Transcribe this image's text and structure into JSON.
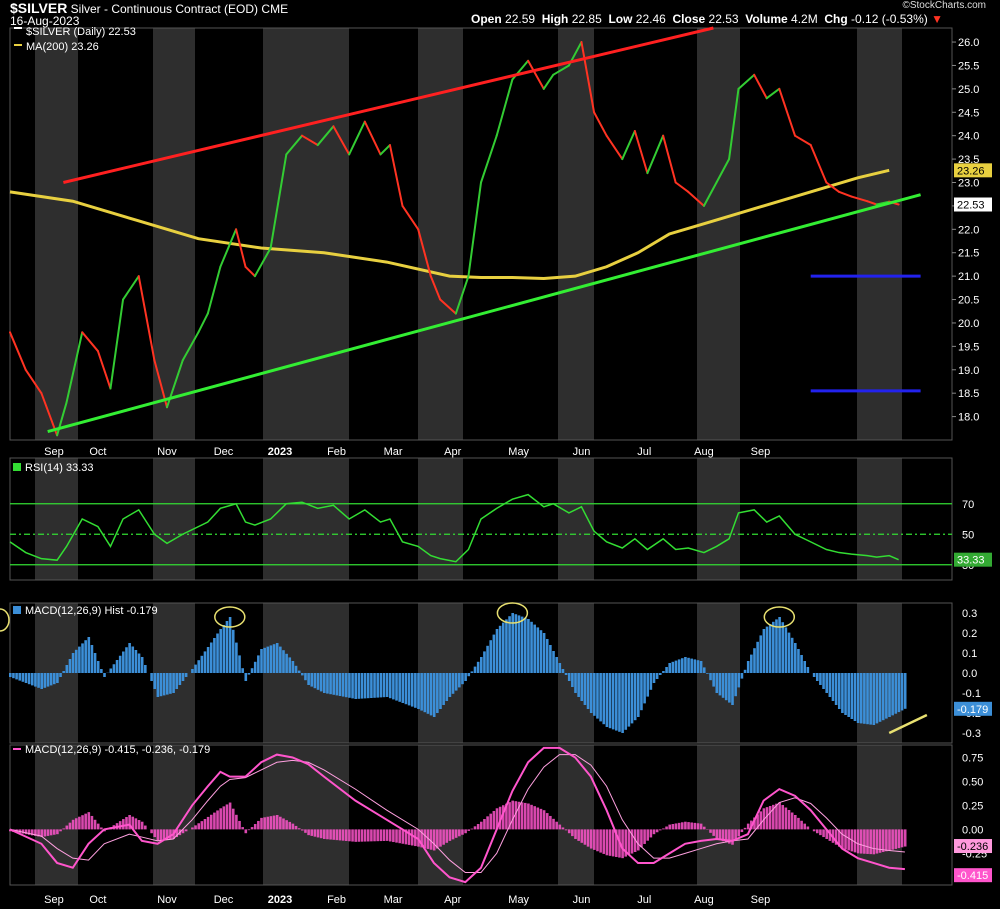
{
  "header": {
    "symbol": "$SILVER",
    "description": "Silver - Continuous Contract (EOD)",
    "exchange": "CME",
    "date": "16-Aug-2023",
    "ohlc_labels": [
      "Open",
      "High",
      "Low",
      "Close",
      "Volume",
      "Chg"
    ],
    "ohlc_values": [
      "22.59",
      "22.85",
      "22.46",
      "22.53",
      "4.2M",
      "-0.12 (-0.53%)"
    ],
    "watermark": "©StockCharts.com"
  },
  "colors": {
    "background": "#000000",
    "band": "#2e2e2e",
    "up": "#33cc33",
    "down": "#ff3322",
    "ma": "#e8d040",
    "rsi": "#33dd33",
    "hist": "#3c8fd8",
    "macd": "#ff55cc",
    "resistance": "#ff2020",
    "support": "#33ee33",
    "level": "#2222ee",
    "annotation": "#e8e070"
  },
  "chart_data": [
    {
      "type": "line",
      "panel": "price",
      "legend": [
        "$SILVER (Daily) 22.53",
        "MA(200) 23.26"
      ],
      "x_labels": [
        "Sep",
        "Oct",
        "Nov",
        "Dec",
        "2023",
        "Feb",
        "Mar",
        "Apr",
        "May",
        "Jun",
        "Jul",
        "Aug",
        "Sep"
      ],
      "ylim": [
        17.5,
        26.3
      ],
      "y_ticks": [
        "18.0",
        "18.5",
        "19.0",
        "19.5",
        "20.0",
        "20.5",
        "21.0",
        "21.5",
        "22.0",
        "22.5",
        "23.0",
        "23.5",
        "24.0",
        "24.5",
        "25.0",
        "25.5",
        "26.0"
      ],
      "last_labels": {
        "ma": "23.26",
        "price": "22.53"
      },
      "series": [
        {
          "name": "$SILVER (Daily)",
          "x": [
            0,
            5,
            10,
            15,
            18,
            23,
            28,
            32,
            36,
            41,
            46,
            50,
            55,
            60,
            63,
            67,
            72,
            75,
            78,
            83,
            88,
            93,
            98,
            103,
            108,
            113,
            118,
            121,
            125,
            130,
            134,
            137,
            142,
            146,
            150,
            155,
            160,
            165,
            170,
            173,
            178,
            182,
            186,
            190,
            195,
            199,
            203,
            208,
            212,
            216,
            221,
            225,
            229,
            232,
            237,
            241,
            245,
            250,
            255,
            260,
            264,
            268,
            273,
            276,
            280,
            283
          ],
          "y": [
            19.8,
            19.0,
            18.5,
            17.6,
            18.3,
            19.8,
            19.4,
            18.6,
            20.5,
            21.0,
            19.2,
            18.2,
            19.2,
            19.8,
            20.2,
            21.2,
            22.0,
            21.2,
            21.0,
            21.6,
            23.6,
            24.0,
            23.8,
            24.2,
            23.6,
            24.3,
            23.6,
            23.8,
            22.5,
            22.0,
            21.0,
            20.5,
            20.2,
            21.0,
            23.0,
            24.0,
            25.2,
            25.6,
            25.0,
            25.3,
            25.5,
            26.0,
            24.5,
            24.0,
            23.5,
            24.1,
            23.2,
            24.0,
            23.0,
            22.8,
            22.5,
            23.0,
            23.5,
            25.0,
            25.3,
            24.8,
            25.0,
            24.0,
            23.8,
            23.0,
            22.8,
            22.7,
            22.6,
            22.53,
            22.59,
            22.53
          ]
        },
        {
          "name": "MA(200)",
          "x": [
            0,
            20,
            40,
            60,
            80,
            100,
            120,
            140,
            150,
            160,
            170,
            180,
            190,
            200,
            210,
            220,
            230,
            240,
            250,
            260,
            270,
            280
          ],
          "y": [
            22.8,
            22.6,
            22.2,
            21.8,
            21.6,
            21.5,
            21.3,
            21.0,
            20.97,
            20.97,
            20.95,
            21.0,
            21.2,
            21.5,
            21.9,
            22.1,
            22.3,
            22.5,
            22.7,
            22.9,
            23.1,
            23.26
          ]
        }
      ],
      "trendlines": [
        {
          "name": "resistance",
          "from": [
            17,
            23.0
          ],
          "to": [
            224,
            26.3
          ]
        },
        {
          "name": "support",
          "from": [
            12,
            17.68
          ],
          "to": [
            290,
            22.74
          ]
        }
      ],
      "levels": [
        {
          "value": 21.0,
          "from_x": 255,
          "to_x": 290
        },
        {
          "value": 18.55,
          "from_x": 255,
          "to_x": 290
        }
      ]
    },
    {
      "type": "line",
      "panel": "rsi",
      "legend": "RSI(14) 33.33",
      "ylim": [
        20,
        100
      ],
      "y_ticks": [
        "70",
        "50",
        "30"
      ],
      "reference_lines": [
        70,
        50,
        30
      ],
      "last_label": "33.33",
      "series": [
        {
          "name": "RSI(14)",
          "x": [
            0,
            5,
            10,
            15,
            18,
            23,
            28,
            32,
            36,
            41,
            46,
            50,
            55,
            60,
            63,
            67,
            72,
            75,
            78,
            83,
            88,
            93,
            98,
            103,
            108,
            113,
            118,
            121,
            125,
            130,
            134,
            137,
            142,
            146,
            150,
            155,
            160,
            165,
            170,
            173,
            178,
            182,
            186,
            190,
            195,
            199,
            203,
            208,
            212,
            216,
            221,
            225,
            229,
            232,
            237,
            241,
            245,
            250,
            255,
            260,
            264,
            268,
            273,
            276,
            280,
            283
          ],
          "y": [
            45,
            38,
            34,
            33,
            42,
            60,
            55,
            42,
            60,
            66,
            50,
            44,
            50,
            55,
            58,
            67,
            70,
            58,
            56,
            60,
            70,
            71,
            67,
            69,
            60,
            66,
            58,
            60,
            45,
            42,
            36,
            34,
            32,
            40,
            60,
            67,
            73,
            76,
            68,
            70,
            64,
            68,
            52,
            45,
            41,
            47,
            40,
            47,
            40,
            41,
            38,
            42,
            47,
            64,
            66,
            58,
            62,
            50,
            45,
            40,
            38,
            37,
            36,
            35,
            36,
            33.33
          ]
        }
      ]
    },
    {
      "type": "bar",
      "panel": "macd_hist",
      "legend": "MACD(12,26,9) Hist -0.179",
      "ylim": [
        -0.35,
        0.35
      ],
      "y_ticks": [
        "0.3",
        "0.2",
        "0.1",
        "0.0",
        "-0.1",
        "-0.2",
        "-0.3"
      ],
      "last_label": "-0.179",
      "x": [
        0,
        10,
        15,
        20,
        25,
        30,
        38,
        42,
        47,
        52,
        58,
        63,
        67,
        70,
        75,
        80,
        85,
        90,
        95,
        100,
        110,
        120,
        130,
        135,
        140,
        145,
        150,
        155,
        160,
        165,
        170,
        175,
        180,
        185,
        190,
        195,
        200,
        205,
        210,
        215,
        220,
        225,
        230,
        235,
        240,
        245,
        250,
        255,
        260,
        265,
        270,
        275,
        280,
        285
      ],
      "values": [
        -0.02,
        -0.08,
        -0.05,
        0.1,
        0.18,
        -0.02,
        0.15,
        0.08,
        -0.12,
        -0.1,
        0.02,
        0.13,
        0.22,
        0.28,
        -0.04,
        0.12,
        0.15,
        0.06,
        -0.06,
        -0.1,
        -0.13,
        -0.12,
        -0.18,
        -0.22,
        -0.12,
        -0.04,
        0.08,
        0.22,
        0.3,
        0.27,
        0.2,
        0.05,
        -0.1,
        -0.2,
        -0.27,
        -0.3,
        -0.22,
        -0.05,
        0.05,
        0.08,
        0.06,
        -0.1,
        -0.16,
        0.06,
        0.22,
        0.28,
        0.15,
        0.0,
        -0.1,
        -0.2,
        -0.25,
        -0.26,
        -0.22,
        -0.179
      ]
    },
    {
      "type": "line",
      "panel": "macd",
      "legend": "MACD(12,26,9) -0.415, -0.236, -0.179",
      "ylim": [
        -0.58,
        0.88
      ],
      "y_ticks": [
        "0.75",
        "0.50",
        "0.25",
        "0.00",
        "-0.25",
        "-0.50"
      ],
      "last_labels": [
        "-0.236",
        "-0.415"
      ],
      "series": [
        {
          "name": "MACD",
          "x": [
            0,
            10,
            15,
            20,
            25,
            30,
            38,
            42,
            47,
            52,
            58,
            63,
            67,
            70,
            75,
            80,
            85,
            90,
            95,
            100,
            110,
            120,
            130,
            135,
            140,
            145,
            150,
            155,
            160,
            165,
            170,
            175,
            180,
            185,
            190,
            195,
            200,
            205,
            210,
            215,
            220,
            225,
            230,
            235,
            240,
            245,
            250,
            255,
            260,
            265,
            270,
            275,
            280,
            285
          ],
          "values": [
            0.0,
            -0.15,
            -0.35,
            -0.4,
            -0.15,
            0.0,
            0.05,
            -0.12,
            -0.15,
            -0.05,
            0.25,
            0.45,
            0.6,
            0.55,
            0.55,
            0.7,
            0.78,
            0.75,
            0.68,
            0.55,
            0.3,
            0.1,
            -0.1,
            -0.35,
            -0.5,
            -0.55,
            -0.4,
            0.0,
            0.4,
            0.7,
            0.85,
            0.85,
            0.75,
            0.55,
            0.2,
            -0.2,
            -0.35,
            -0.35,
            -0.25,
            -0.15,
            -0.12,
            -0.1,
            -0.12,
            -0.05,
            0.3,
            0.42,
            0.35,
            0.2,
            0.0,
            -0.2,
            -0.3,
            -0.35,
            -0.4,
            -0.415
          ]
        },
        {
          "name": "Signal",
          "x": [
            0,
            10,
            15,
            20,
            25,
            30,
            38,
            42,
            47,
            52,
            58,
            63,
            67,
            70,
            75,
            80,
            85,
            90,
            95,
            100,
            110,
            120,
            130,
            135,
            140,
            145,
            150,
            155,
            160,
            165,
            170,
            175,
            180,
            185,
            190,
            195,
            200,
            205,
            210,
            215,
            220,
            225,
            230,
            235,
            240,
            245,
            250,
            255,
            260,
            265,
            270,
            275,
            280,
            285
          ],
          "values": [
            0.0,
            -0.07,
            -0.2,
            -0.3,
            -0.32,
            -0.15,
            -0.05,
            -0.08,
            -0.12,
            -0.1,
            0.1,
            0.3,
            0.45,
            0.52,
            0.54,
            0.62,
            0.7,
            0.72,
            0.7,
            0.62,
            0.42,
            0.2,
            0.0,
            -0.15,
            -0.32,
            -0.45,
            -0.45,
            -0.25,
            0.1,
            0.42,
            0.65,
            0.78,
            0.78,
            0.67,
            0.45,
            0.1,
            -0.15,
            -0.3,
            -0.3,
            -0.25,
            -0.2,
            -0.15,
            -0.12,
            -0.1,
            0.1,
            0.28,
            0.33,
            0.27,
            0.12,
            -0.05,
            -0.15,
            -0.2,
            -0.22,
            -0.236
          ]
        }
      ]
    }
  ]
}
